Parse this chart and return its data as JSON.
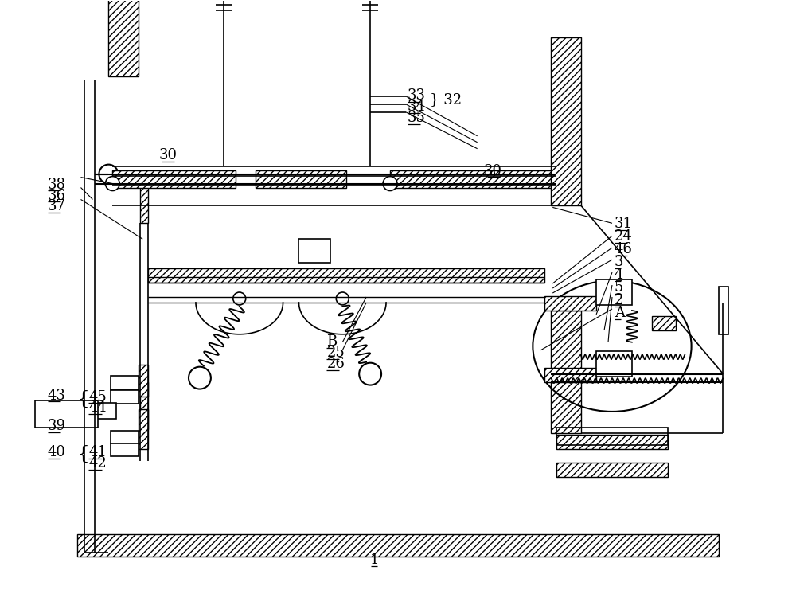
{
  "bg_color": "#ffffff",
  "line_color": "#000000",
  "fig_width": 10.0,
  "fig_height": 7.41,
  "dpi": 100
}
